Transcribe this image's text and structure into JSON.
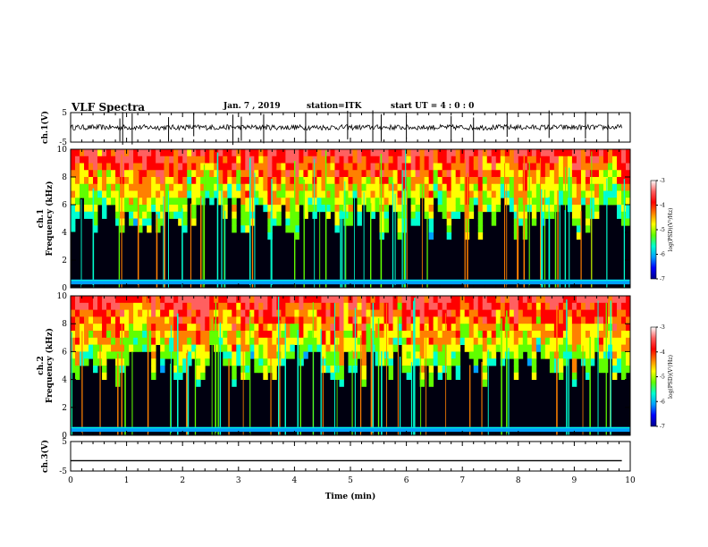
{
  "header": {
    "title": "VLF Spectra",
    "date": "Jan. 7 , 2019",
    "station": "station=ITK",
    "start": "start  UT =   4 : 0  : 0"
  },
  "colors": {
    "ink": "#000000",
    "background": "#ffffff",
    "colormap": [
      "#00008c",
      "#0000ff",
      "#00a0ff",
      "#00ffd0",
      "#60ff00",
      "#ffff00",
      "#ff8000",
      "#ff0000",
      "#ff6060",
      "#ffffff"
    ]
  },
  "chart_data": [
    {
      "type": "line",
      "panel": "ch1-waveform",
      "ylabel": "ch.1(V)",
      "ylim": [
        -5,
        5
      ],
      "yticks": [
        "5",
        "-5"
      ],
      "xlim": [
        0,
        10
      ],
      "baseline": 0,
      "spikes_min": [
        0.88,
        0.93,
        1.1,
        1.75,
        2.2,
        2.9,
        3.05,
        3.45,
        4.2,
        4.95,
        5.4,
        5.55,
        6.0,
        6.8,
        7.2,
        7.8,
        8.55,
        9.2,
        9.6
      ]
    },
    {
      "type": "heatmap",
      "panel": "ch1-spectrogram",
      "ylabel": "ch.1\nFrequency (kHz)",
      "ylim": [
        0,
        10
      ],
      "yticks": [
        "0",
        "2",
        "4",
        "6",
        "8",
        "10"
      ],
      "xlim": [
        0,
        10
      ],
      "colorbar": {
        "label": "log(PSD)(V²/Hz)",
        "range": [
          -7,
          -3
        ],
        "ticks": [
          "-3",
          "-4",
          "-5",
          "-6",
          "-7"
        ]
      }
    },
    {
      "type": "heatmap",
      "panel": "ch2-spectrogram",
      "ylabel": "ch.2\nFrequency (kHz)",
      "ylim": [
        0,
        10
      ],
      "yticks": [
        "0",
        "2",
        "4",
        "6",
        "8",
        "10"
      ],
      "xlim": [
        0,
        10
      ],
      "colorbar": {
        "label": "log(PSD)(V²/Hz)",
        "range": [
          -7,
          -3
        ],
        "ticks": [
          "-3",
          "-4",
          "-5",
          "-6",
          "-7"
        ]
      }
    },
    {
      "type": "line",
      "panel": "ch3-waveform",
      "ylabel": "ch.3(V)",
      "ylim": [
        -5,
        5
      ],
      "yticks": [
        "5",
        "-5"
      ],
      "xlim": [
        0,
        10
      ],
      "baseline": -1.5
    }
  ],
  "x_axis": {
    "label": "Time (min)",
    "ticks": [
      "0",
      "1",
      "2",
      "3",
      "4",
      "5",
      "6",
      "7",
      "8",
      "9",
      "10"
    ]
  }
}
